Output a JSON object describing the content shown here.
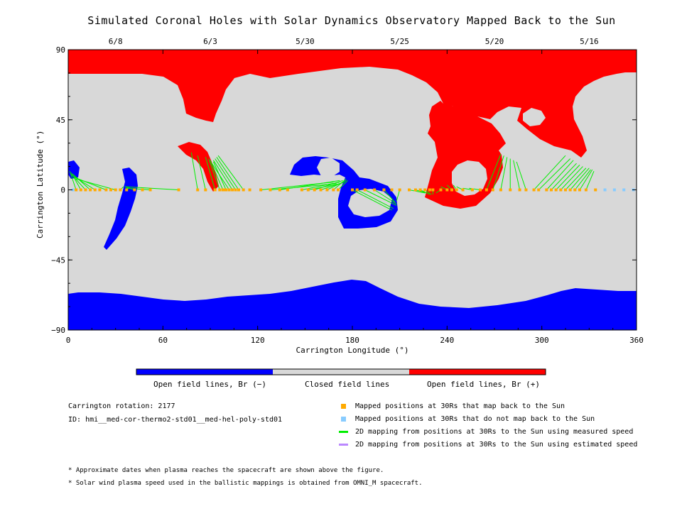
{
  "chart_data": {
    "type": "scatter",
    "title": "Simulated Coronal Holes with Solar Dynamics Observatory Mapped Back to the Sun",
    "xlabel": "Carrington Longitude (°)",
    "ylabel": "Carrington Latitude (°)",
    "xlim": [
      0,
      360
    ],
    "ylim": [
      -90,
      90
    ],
    "x_ticks": [
      "0",
      "60",
      "120",
      "180",
      "240",
      "300",
      "360"
    ],
    "y_ticks": [
      "90",
      "45",
      "0",
      "−45",
      "−90"
    ],
    "top_axis": {
      "dates": [
        {
          "label": "6/8",
          "lon": 30
        },
        {
          "label": "6/3",
          "lon": 90
        },
        {
          "label": "5/30",
          "lon": 150
        },
        {
          "label": "5/25",
          "lon": 210
        },
        {
          "label": "5/20",
          "lon": 270
        },
        {
          "label": "5/16",
          "lon": 330
        }
      ]
    },
    "colorbar": [
      {
        "label": "Open field lines, Br (−)",
        "color": "#0000ff"
      },
      {
        "label": "Closed field lines",
        "color": "#d8d8d8"
      },
      {
        "label": "Open field lines, Br (+)",
        "color": "#ff0000"
      }
    ],
    "series": [
      {
        "name": "Mapped positions at 30Rs that map back to the Sun",
        "color": "#ffaa00",
        "points": [
          [
            5,
            0
          ],
          [
            8,
            0
          ],
          [
            11,
            0
          ],
          [
            14,
            0
          ],
          [
            17,
            0
          ],
          [
            20,
            0
          ],
          [
            24,
            0
          ],
          [
            27,
            0
          ],
          [
            30,
            0
          ],
          [
            33,
            0
          ],
          [
            37,
            0
          ],
          [
            42,
            0
          ],
          [
            47,
            0
          ],
          [
            52,
            0
          ],
          [
            70,
            0
          ],
          [
            82,
            0
          ],
          [
            87,
            0
          ],
          [
            93,
            0
          ],
          [
            96,
            0
          ],
          [
            98,
            0
          ],
          [
            99,
            0
          ],
          [
            100,
            0
          ],
          [
            102,
            0
          ],
          [
            104,
            0
          ],
          [
            106,
            0
          ],
          [
            108,
            0
          ],
          [
            111,
            0
          ],
          [
            115,
            0
          ],
          [
            122,
            0
          ],
          [
            128,
            0
          ],
          [
            134,
            0
          ],
          [
            139,
            0
          ],
          [
            148,
            0
          ],
          [
            152,
            0
          ],
          [
            156,
            0
          ],
          [
            160,
            0
          ],
          [
            164,
            0
          ],
          [
            168,
            0
          ],
          [
            171,
            0
          ],
          [
            180,
            0
          ],
          [
            183,
            0
          ],
          [
            188,
            0
          ],
          [
            194,
            0
          ],
          [
            200,
            0
          ],
          [
            205,
            0
          ],
          [
            210,
            0
          ],
          [
            216,
            0
          ],
          [
            220,
            0
          ],
          [
            223,
            0
          ],
          [
            226,
            0
          ],
          [
            229,
            0
          ],
          [
            231,
            0
          ],
          [
            236,
            0
          ],
          [
            240,
            0
          ],
          [
            243,
            0
          ],
          [
            246,
            0
          ],
          [
            250,
            0
          ],
          [
            256,
            0
          ],
          [
            261,
            0
          ],
          [
            265,
            0
          ],
          [
            269,
            0
          ],
          [
            274,
            0
          ],
          [
            280,
            0
          ],
          [
            286,
            0
          ],
          [
            290,
            0
          ],
          [
            295,
            0
          ],
          [
            298,
            0
          ],
          [
            303,
            0
          ],
          [
            306,
            0
          ],
          [
            309,
            0
          ],
          [
            312,
            0
          ],
          [
            315,
            0
          ],
          [
            318,
            0
          ],
          [
            321,
            0
          ],
          [
            324,
            0
          ],
          [
            328,
            0
          ],
          [
            334,
            0
          ]
        ]
      },
      {
        "name": "Mapped positions at 30Rs that do not map back to the Sun",
        "color": "#88ccff",
        "points": [
          [
            3,
            0
          ],
          [
            340,
            0
          ],
          [
            346,
            0
          ],
          [
            352,
            0
          ],
          [
            358,
            0
          ]
        ]
      },
      {
        "name": "2D mapping from positions at 30Rs to the Sun using measured speed",
        "color": "#00ee00",
        "segments": [
          [
            [
              5,
              0
            ],
            [
              1,
              12
            ]
          ],
          [
            [
              8,
              0
            ],
            [
              2,
              11
            ]
          ],
          [
            [
              11,
              0
            ],
            [
              2,
              10
            ]
          ],
          [
            [
              14,
              0
            ],
            [
              3,
              10
            ]
          ],
          [
            [
              17,
              0
            ],
            [
              3,
              9
            ]
          ],
          [
            [
              24,
              0
            ],
            [
              4,
              8
            ]
          ],
          [
            [
              30,
              0
            ],
            [
              5,
              7
            ]
          ],
          [
            [
              33,
              0
            ],
            [
              35,
              2
            ]
          ],
          [
            [
              42,
              0
            ],
            [
              36,
              2
            ]
          ],
          [
            [
              52,
              0
            ],
            [
              37,
              1
            ]
          ],
          [
            [
              70,
              0
            ],
            [
              36,
              2
            ]
          ],
          [
            [
              82,
              0
            ],
            [
              78,
              24
            ]
          ],
          [
            [
              87,
              0
            ],
            [
              82,
              22
            ]
          ],
          [
            [
              93,
              0
            ],
            [
              87,
              21
            ]
          ],
          [
            [
              96,
              0
            ],
            [
              89,
              20
            ]
          ],
          [
            [
              98,
              0
            ],
            [
              90,
              19
            ]
          ],
          [
            [
              100,
              0
            ],
            [
              92,
              18
            ]
          ],
          [
            [
              102,
              0
            ],
            [
              91,
              17
            ]
          ],
          [
            [
              104,
              0
            ],
            [
              92,
              19
            ]
          ],
          [
            [
              106,
              0
            ],
            [
              93,
              20
            ]
          ],
          [
            [
              108,
              0
            ],
            [
              94,
              21
            ]
          ],
          [
            [
              111,
              0
            ],
            [
              95,
              22
            ]
          ],
          [
            [
              122,
              0
            ],
            [
              168,
              5
            ]
          ],
          [
            [
              128,
              0
            ],
            [
              170,
              4
            ]
          ],
          [
            [
              134,
              0
            ],
            [
              172,
              6
            ]
          ],
          [
            [
              148,
              0
            ],
            [
              172,
              5
            ]
          ],
          [
            [
              152,
              0
            ],
            [
              173,
              4
            ]
          ],
          [
            [
              156,
              0
            ],
            [
              174,
              6
            ]
          ],
          [
            [
              160,
              0
            ],
            [
              175,
              5
            ]
          ],
          [
            [
              164,
              0
            ],
            [
              176,
              6
            ]
          ],
          [
            [
              168,
              0
            ],
            [
              176,
              7
            ]
          ],
          [
            [
              171,
              0
            ],
            [
              177,
              6
            ]
          ],
          [
            [
              180,
              0
            ],
            [
              205,
              -13
            ]
          ],
          [
            [
              183,
              0
            ],
            [
              206,
              -12
            ]
          ],
          [
            [
              188,
              0
            ],
            [
              208,
              -10
            ]
          ],
          [
            [
              194,
              0
            ],
            [
              208,
              -9
            ]
          ],
          [
            [
              200,
              0
            ],
            [
              207,
              -8
            ]
          ],
          [
            [
              210,
              0
            ],
            [
              208,
              -7
            ]
          ],
          [
            [
              216,
              0
            ],
            [
              226,
              -2
            ]
          ],
          [
            [
              220,
              0
            ],
            [
              227,
              -2
            ]
          ],
          [
            [
              223,
              0
            ],
            [
              229,
              -3
            ]
          ],
          [
            [
              226,
              0
            ],
            [
              230,
              -3
            ]
          ],
          [
            [
              231,
              0
            ],
            [
              231,
              -3
            ]
          ],
          [
            [
              236,
              0
            ],
            [
              233,
              -2
            ]
          ],
          [
            [
              240,
              0
            ],
            [
              236,
              2
            ]
          ],
          [
            [
              243,
              0
            ],
            [
              240,
              3
            ]
          ],
          [
            [
              246,
              0
            ],
            [
              244,
              3
            ]
          ],
          [
            [
              250,
              0
            ],
            [
              246,
              2
            ]
          ],
          [
            [
              256,
              0
            ],
            [
              250,
              1
            ]
          ],
          [
            [
              261,
              0
            ],
            [
              254,
              1
            ]
          ],
          [
            [
              265,
              0
            ],
            [
              274,
              23
            ]
          ],
          [
            [
              269,
              0
            ],
            [
              276,
              22
            ]
          ],
          [
            [
              274,
              0
            ],
            [
              278,
              21
            ]
          ],
          [
            [
              280,
              0
            ],
            [
              280,
              20
            ]
          ],
          [
            [
              286,
              0
            ],
            [
              282,
              19
            ]
          ],
          [
            [
              290,
              0
            ],
            [
              284,
              18
            ]
          ],
          [
            [
              295,
              0
            ],
            [
              315,
              22
            ]
          ],
          [
            [
              298,
              0
            ],
            [
              318,
              20
            ]
          ],
          [
            [
              303,
              0
            ],
            [
              320,
              19
            ]
          ],
          [
            [
              306,
              0
            ],
            [
              322,
              17
            ]
          ],
          [
            [
              309,
              0
            ],
            [
              324,
              16
            ]
          ],
          [
            [
              312,
              0
            ],
            [
              326,
              15
            ]
          ],
          [
            [
              315,
              0
            ],
            [
              328,
              14
            ]
          ],
          [
            [
              318,
              0
            ],
            [
              330,
              14
            ]
          ],
          [
            [
              321,
              0
            ],
            [
              331,
              13
            ]
          ],
          [
            [
              324,
              0
            ],
            [
              332,
              13
            ]
          ],
          [
            [
              328,
              0
            ],
            [
              333,
              12
            ]
          ]
        ]
      },
      {
        "name": "2D mapping from positions at 30Rs to the Sun using estimated speed",
        "color": "#bb88ff",
        "segments": []
      }
    ]
  },
  "info": {
    "rotation": "Carrington rotation: 2177",
    "id": "ID: hmi__med-cor-thermo2-std01__med-hel-poly-std01"
  },
  "notes": [
    "* Approximate dates when plasma reaches the spacecraft are shown above the figure.",
    "* Solar wind plasma speed used in the ballistic mappings is obtained from OMNI_M spacecraft."
  ]
}
